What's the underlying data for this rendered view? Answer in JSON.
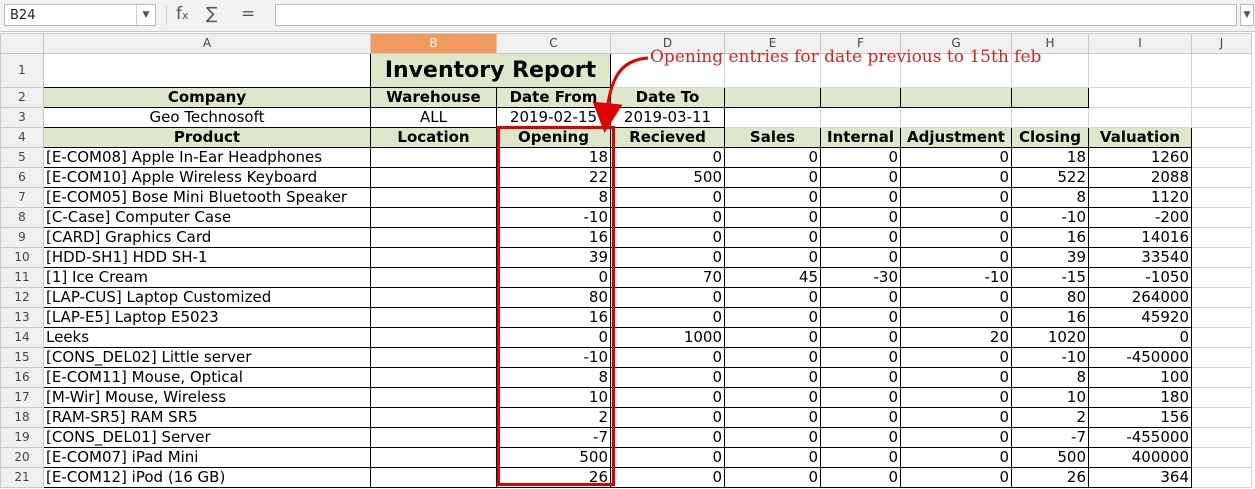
{
  "formula_bar": {
    "cell_ref": "B24",
    "function_wizard_icon": "fx-icon",
    "sum_icon": "sigma-icon",
    "equals_icon": "equals-icon",
    "formula": ""
  },
  "columns": [
    "A",
    "B",
    "C",
    "D",
    "E",
    "F",
    "G",
    "H",
    "I",
    "J"
  ],
  "selected_column": "B",
  "rows": [
    "1",
    "2",
    "3",
    "4",
    "5",
    "6",
    "7",
    "8",
    "9",
    "10",
    "11",
    "12",
    "13",
    "14",
    "15",
    "16",
    "17",
    "18",
    "19",
    "20",
    "21"
  ],
  "report": {
    "title": "Inventory Report",
    "meta_headers": {
      "company": "Company",
      "warehouse": "Warehouse",
      "date_from": "Date From",
      "date_to": "Date To"
    },
    "meta_values": {
      "company": "Geo Technosoft",
      "warehouse": "ALL",
      "date_from": "2019-02-15",
      "date_to": "2019-03-11"
    },
    "table_headers": {
      "product": "Product",
      "location": "Location",
      "opening": "Opening",
      "received": "Recieved",
      "sales": "Sales",
      "internal": "Internal",
      "adjustment": "Adjustment",
      "closing": "Closing",
      "valuation": "Valuation"
    },
    "items": [
      {
        "product": "[E-COM08] Apple In-Ear Headphones",
        "opening": "18",
        "received": "0",
        "sales": "0",
        "internal": "0",
        "adjustment": "0",
        "closing": "18",
        "valuation": "1260"
      },
      {
        "product": "[E-COM10] Apple Wireless Keyboard",
        "opening": "22",
        "received": "500",
        "sales": "0",
        "internal": "0",
        "adjustment": "0",
        "closing": "522",
        "valuation": "2088"
      },
      {
        "product": "[E-COM05] Bose Mini Bluetooth Speaker",
        "opening": "8",
        "received": "0",
        "sales": "0",
        "internal": "0",
        "adjustment": "0",
        "closing": "8",
        "valuation": "1120"
      },
      {
        "product": "[C-Case] Computer Case",
        "opening": "-10",
        "received": "0",
        "sales": "0",
        "internal": "0",
        "adjustment": "0",
        "closing": "-10",
        "valuation": "-200"
      },
      {
        "product": "[CARD] Graphics Card",
        "opening": "16",
        "received": "0",
        "sales": "0",
        "internal": "0",
        "adjustment": "0",
        "closing": "16",
        "valuation": "14016"
      },
      {
        "product": "[HDD-SH1] HDD SH-1",
        "opening": "39",
        "received": "0",
        "sales": "0",
        "internal": "0",
        "adjustment": "0",
        "closing": "39",
        "valuation": "33540"
      },
      {
        "product": "[1] Ice Cream",
        "opening": "0",
        "received": "70",
        "sales": "45",
        "internal": "-30",
        "adjustment": "-10",
        "closing": "-15",
        "valuation": "-1050"
      },
      {
        "product": "[LAP-CUS] Laptop Customized",
        "opening": "80",
        "received": "0",
        "sales": "0",
        "internal": "0",
        "adjustment": "0",
        "closing": "80",
        "valuation": "264000"
      },
      {
        "product": "[LAP-E5] Laptop E5023",
        "opening": "16",
        "received": "0",
        "sales": "0",
        "internal": "0",
        "adjustment": "0",
        "closing": "16",
        "valuation": "45920"
      },
      {
        "product": "Leeks",
        "opening": "0",
        "received": "1000",
        "sales": "0",
        "internal": "0",
        "adjustment": "20",
        "closing": "1020",
        "valuation": "0"
      },
      {
        "product": "[CONS_DEL02] Little server",
        "opening": "-10",
        "received": "0",
        "sales": "0",
        "internal": "0",
        "adjustment": "0",
        "closing": "-10",
        "valuation": "-450000"
      },
      {
        "product": "[E-COM11] Mouse, Optical",
        "opening": "8",
        "received": "0",
        "sales": "0",
        "internal": "0",
        "adjustment": "0",
        "closing": "8",
        "valuation": "100"
      },
      {
        "product": "[M-Wir] Mouse, Wireless",
        "opening": "10",
        "received": "0",
        "sales": "0",
        "internal": "0",
        "adjustment": "0",
        "closing": "10",
        "valuation": "180"
      },
      {
        "product": "[RAM-SR5] RAM SR5",
        "opening": "2",
        "received": "0",
        "sales": "0",
        "internal": "0",
        "adjustment": "0",
        "closing": "2",
        "valuation": "156"
      },
      {
        "product": "[CONS_DEL01] Server",
        "opening": "-7",
        "received": "0",
        "sales": "0",
        "internal": "0",
        "adjustment": "0",
        "closing": "-7",
        "valuation": "-455000"
      },
      {
        "product": "[E-COM07] iPad Mini",
        "opening": "500",
        "received": "0",
        "sales": "0",
        "internal": "0",
        "adjustment": "0",
        "closing": "500",
        "valuation": "400000"
      },
      {
        "product": "[E-COM12] iPod (16 GB)",
        "opening": "26",
        "received": "0",
        "sales": "0",
        "internal": "0",
        "adjustment": "0",
        "closing": "26",
        "valuation": "364"
      }
    ]
  },
  "annotation": {
    "text": "Opening entries for date previous to 15th feb",
    "color": "#e02020"
  },
  "colors": {
    "header_fill": "#dde8cb",
    "selected_column": "#f09a5e",
    "highlight_box": "#e00000"
  }
}
